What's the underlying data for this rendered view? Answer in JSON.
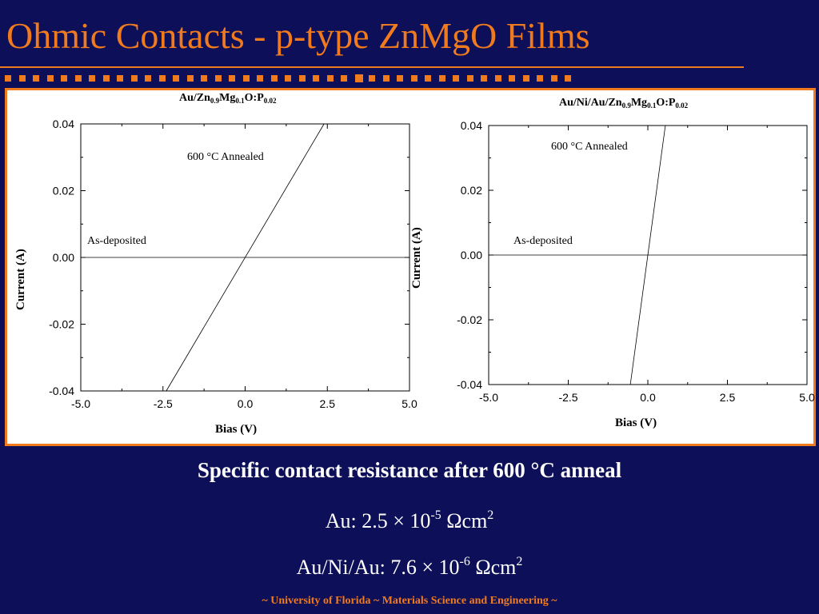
{
  "slide": {
    "title": "Ohmic Contacts - p-type ZnMgO Films",
    "footer": "~ University of Florida ~ Materials Science and Engineering ~",
    "colors": {
      "background": "#0d1058",
      "accent": "#f07a1e",
      "text": "#ffffff"
    }
  },
  "caption": {
    "heading": "Specific contact resistance after 600 °C anneal",
    "line1": {
      "prefix": "Au:  2.5 × 10",
      "exponent": "-5",
      "unit": " Ωcm",
      "unit_exp": "2"
    },
    "line2": {
      "prefix": "Au/Ni/Au: 7.6 × 10",
      "exponent": "-6",
      "unit": " Ωcm",
      "unit_exp": "2"
    }
  },
  "chart_data": [
    {
      "type": "line",
      "title": {
        "a": "Au/Zn",
        "a_sub": "0.9",
        "b": "Mg",
        "b_sub": "0.1",
        "c": "O:P",
        "c_sub": "0.02"
      },
      "xlabel": "Bias (V)",
      "ylabel": "Current (A)",
      "xlim": [
        -5.0,
        5.0
      ],
      "ylim": [
        -0.04,
        0.04
      ],
      "xticks": [
        "-5.0",
        "-2.5",
        "0.0",
        "2.5",
        "5.0"
      ],
      "yticks": [
        "0.04",
        "0.02",
        "0.00",
        "-0.02",
        "-0.04"
      ],
      "grid": false,
      "series": [
        {
          "name": "600 °C Annealed",
          "x": [
            -2.4,
            2.4
          ],
          "y": [
            -0.04,
            0.04
          ]
        },
        {
          "name": "As-deposited",
          "x": [
            -5.0,
            5.0
          ],
          "y": [
            0.0,
            0.0
          ]
        }
      ]
    },
    {
      "type": "line",
      "title": {
        "a": "Au/Ni/Au/Zn",
        "a_sub": "0.9",
        "b": "Mg",
        "b_sub": "0.1",
        "c": "O:P",
        "c_sub": "0.02"
      },
      "xlabel": "Bias (V)",
      "ylabel": "Current (A)",
      "xlim": [
        -5.0,
        5.0
      ],
      "ylim": [
        -0.04,
        0.04
      ],
      "xticks": [
        "-5.0",
        "-2.5",
        "0.0",
        "2.5",
        "5.0"
      ],
      "yticks": [
        "0.04",
        "0.02",
        "0.00",
        "-0.02",
        "-0.04"
      ],
      "grid": false,
      "series": [
        {
          "name": "600 °C Annealed",
          "x": [
            -0.55,
            0.55
          ],
          "y": [
            -0.04,
            0.04
          ]
        },
        {
          "name": "As-deposited",
          "x": [
            -5.0,
            5.0
          ],
          "y": [
            0.0,
            0.0
          ]
        }
      ]
    }
  ]
}
